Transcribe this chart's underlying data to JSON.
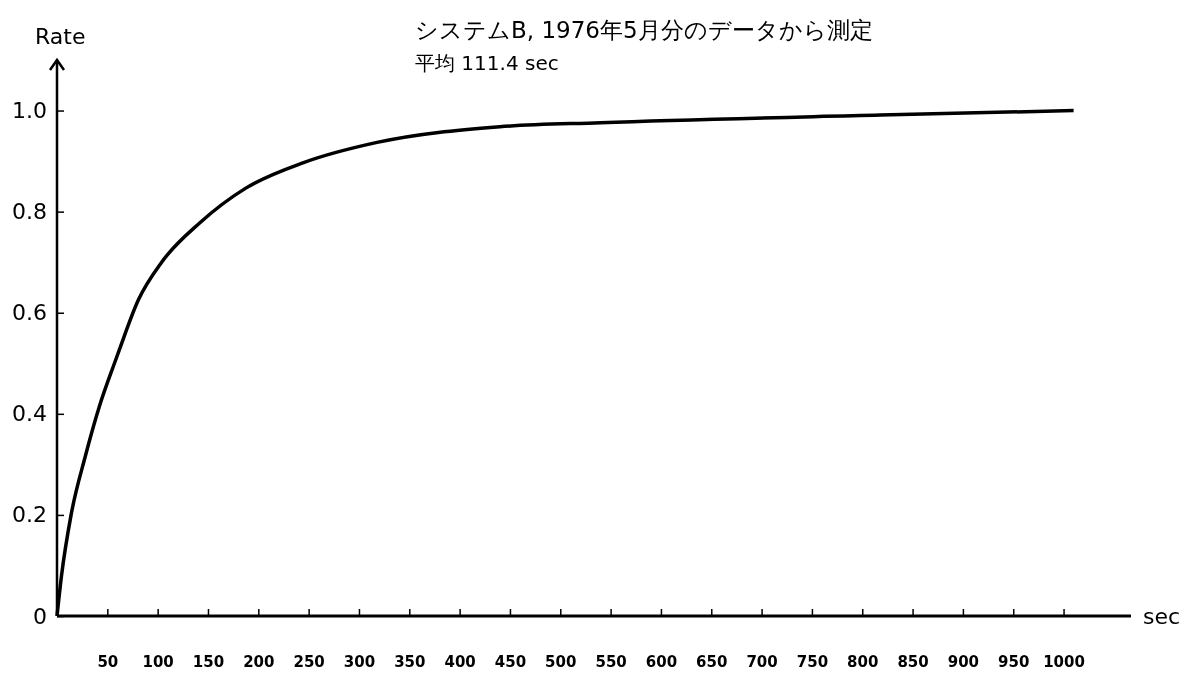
{
  "chart_data": {
    "type": "line",
    "title": "システムB, 1976年5月分のデータから測定",
    "subtitle": "平均 111.4 sec",
    "xlabel": "sec",
    "ylabel": "Rate",
    "x": [
      0,
      4.5,
      14,
      28,
      42,
      58,
      62,
      81,
      104,
      142,
      188,
      245,
      318,
      440,
      540,
      818,
      1010
    ],
    "series": [
      {
        "color": "#000000",
        "values": [
          0,
          0.08,
          0.2,
          0.315,
          0.414,
          0.505,
          0.527,
          0.626,
          0.7,
          0.778,
          0.847,
          0.897,
          0.937,
          0.968,
          0.976,
          0.991,
          1.0
        ]
      }
    ],
    "xlim": [
      0,
      1067
    ],
    "xticks": [
      50,
      100,
      150,
      200,
      250,
      300,
      350,
      400,
      450,
      500,
      550,
      600,
      650,
      700,
      750,
      800,
      850,
      900,
      950,
      1000
    ],
    "ylim": [
      0,
      1.1
    ],
    "yticks": [
      0,
      0.2,
      0.4,
      0.6,
      0.8,
      {
        "value": 1,
        "label": "1.0"
      }
    ],
    "grid": false,
    "marker": "none",
    "line_style": "solid"
  }
}
